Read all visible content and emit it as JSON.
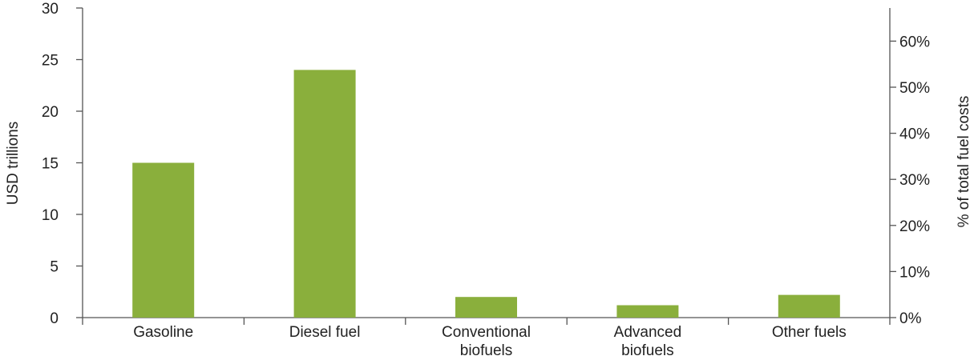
{
  "chart_data": {
    "type": "bar",
    "categories": [
      [
        "Gasoline"
      ],
      [
        "Diesel fuel"
      ],
      [
        "Conventional",
        "biofuels"
      ],
      [
        "Advanced",
        "biofuels"
      ],
      [
        "Other fuels"
      ]
    ],
    "values": [
      15,
      24,
      2,
      1.2,
      2.2
    ],
    "ylabel": "USD trillions",
    "y2label": "% of total fuel costs",
    "ylim": [
      0,
      30
    ],
    "yticks": [
      "0",
      "5",
      "10",
      "15",
      "20",
      "25",
      "30"
    ],
    "y2ticks": [
      "0%",
      "10%",
      "20%",
      "30%",
      "40%",
      "50%",
      "60%"
    ],
    "grid": false,
    "legend": "none",
    "bar_color": "#8aaf3c"
  }
}
